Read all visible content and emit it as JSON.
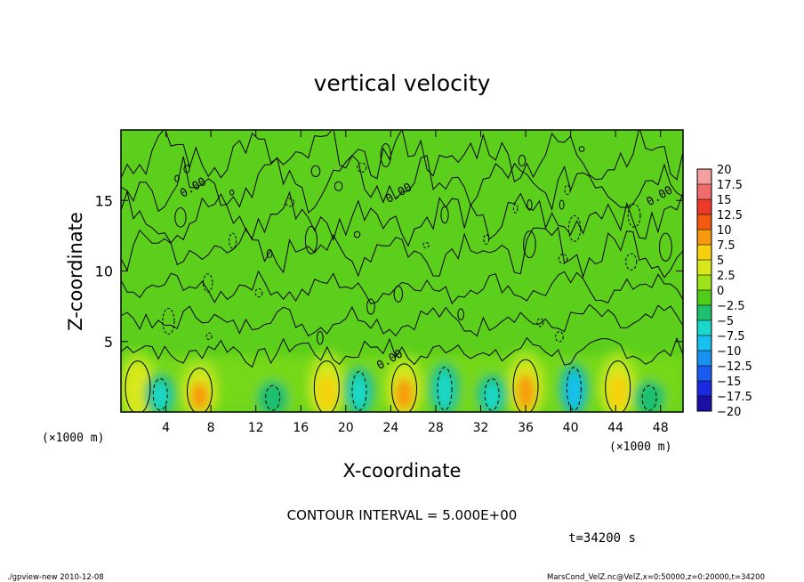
{
  "chart_data": {
    "type": "heatmap",
    "title": "vertical velocity",
    "xlabel": "X-coordinate",
    "ylabel": "Z-coordinate",
    "x_unit_left": "(×1000 m)",
    "x_unit_right": "(×1000 m)",
    "xlim": [
      0,
      50
    ],
    "ylim": [
      0,
      20
    ],
    "x_ticks": [
      "4",
      "8",
      "12",
      "16",
      "20",
      "24",
      "28",
      "32",
      "36",
      "40",
      "44",
      "48"
    ],
    "y_ticks": [
      "5",
      "10",
      "15"
    ],
    "contour_interval_text": "CONTOUR INTERVAL = 5.000E+00",
    "time_text": "t=34200 s",
    "contour_label": "0.00",
    "colorbar": {
      "labels": [
        "20",
        "17.5",
        "15",
        "12.5",
        "10",
        "7.5",
        "5",
        "2.5",
        "0",
        "−2.5",
        "−5",
        "−7.5",
        "−10",
        "−12.5",
        "−15",
        "−17.5",
        "−20"
      ],
      "colors": [
        "#f4a0a0",
        "#f06c6c",
        "#ee3a2a",
        "#f45a10",
        "#f89a10",
        "#f7d010",
        "#d8e81a",
        "#9ee21a",
        "#50cc1a",
        "#1fc070",
        "#1ad8c8",
        "#18c0f0",
        "#1890f0",
        "#1a5cf0",
        "#1a2ae0",
        "#1a10a8",
        "#6a1a9a"
      ]
    },
    "updrafts": [
      {
        "x": 1.5,
        "z_top": 4.5,
        "w": 4
      },
      {
        "x": 7.0,
        "z_top": 4.0,
        "w": 9
      },
      {
        "x": 18.3,
        "z_top": 4.5,
        "w": 8
      },
      {
        "x": 25.2,
        "z_top": 4.3,
        "w": 9
      },
      {
        "x": 36.0,
        "z_top": 4.6,
        "w": 9
      },
      {
        "x": 44.2,
        "z_top": 4.5,
        "w": 7
      }
    ],
    "downdrafts": [
      {
        "x": 3.5,
        "z_top": 3.0,
        "w": -4
      },
      {
        "x": 13.5,
        "z_top": 2.5,
        "w": -3
      },
      {
        "x": 21.2,
        "z_top": 3.5,
        "w": -5
      },
      {
        "x": 28.8,
        "z_top": 3.8,
        "w": -6
      },
      {
        "x": 33.0,
        "z_top": 3.0,
        "w": -5
      },
      {
        "x": 40.3,
        "z_top": 3.8,
        "w": -7
      },
      {
        "x": 47.0,
        "z_top": 2.5,
        "w": -2
      }
    ]
  },
  "footer": {
    "left": "./gpview-new  2010-12-08",
    "right": "MarsCond_VelZ.nc@VelZ,x=0:50000,z=0:20000,t=34200"
  }
}
